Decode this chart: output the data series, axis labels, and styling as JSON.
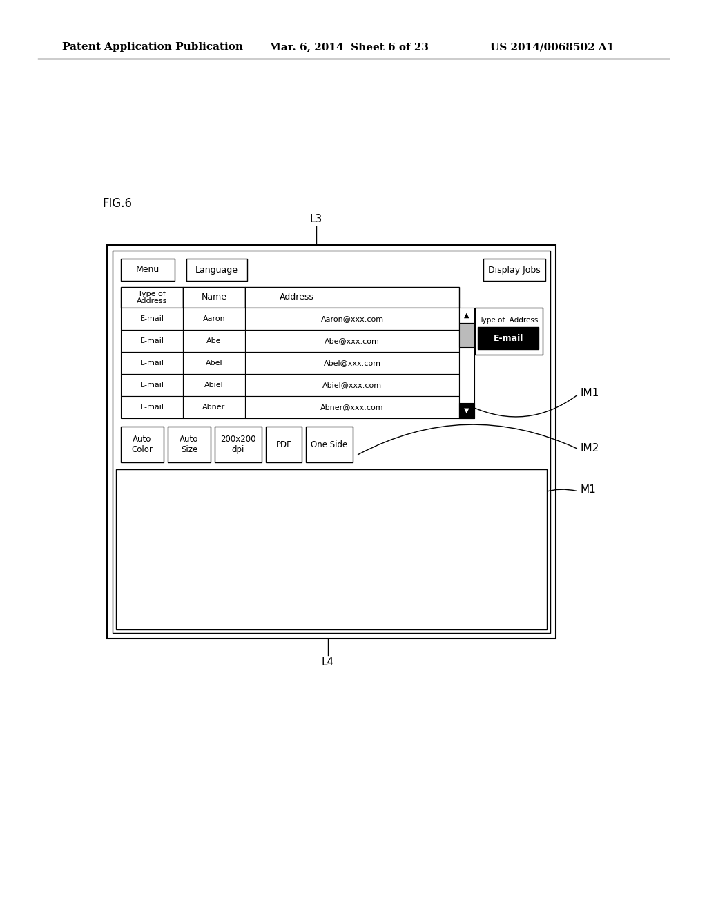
{
  "bg_color": "#ffffff",
  "header_text": "Patent Application Publication",
  "header_date": "Mar. 6, 2014  Sheet 6 of 23",
  "header_patent": "US 2014/0068502 A1",
  "fig_label": "FIG.6",
  "L3_label": "L3",
  "L4_label": "L4",
  "IM1_label": "IM1",
  "IM2_label": "IM2",
  "M1_label": "M1",
  "table_rows": [
    [
      "E-mail",
      "Aaron",
      "Aaron@xxx.com"
    ],
    [
      "E-mail",
      "Abe",
      "Abe@xxx.com"
    ],
    [
      "E-mail",
      "Abel",
      "Abel@xxx.com"
    ],
    [
      "E-mail",
      "Abiel",
      "Abiel@xxx.com"
    ],
    [
      "E-mail",
      "Abner",
      "Abner@xxx.com"
    ]
  ]
}
